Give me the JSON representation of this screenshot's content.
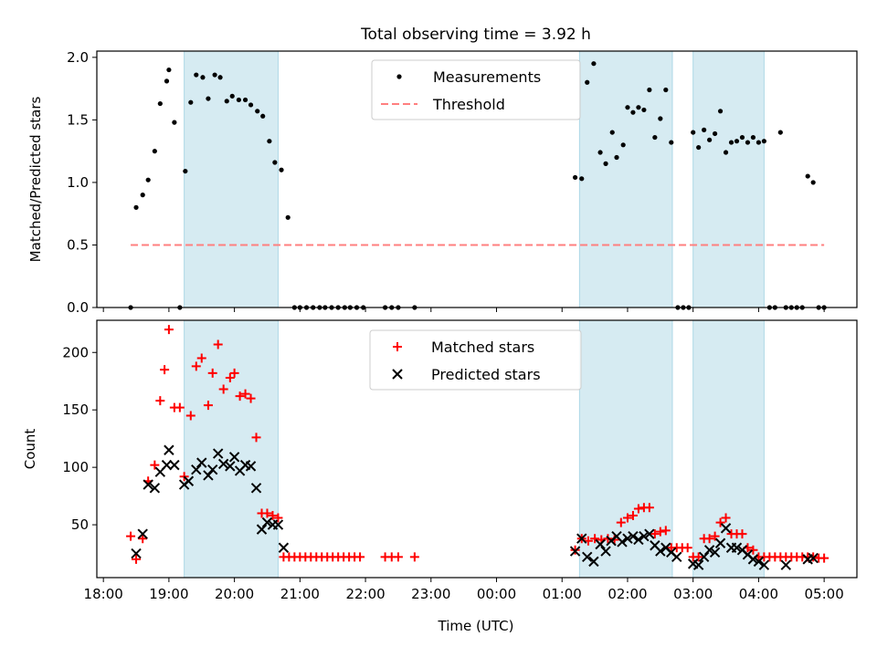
{
  "figure": {
    "title": "Total observing time = 3.92 h",
    "xlabel": "Time (UTC)"
  },
  "chart_data": [
    {
      "type": "scatter",
      "panel": "top",
      "ylabel": "Matched/Predicted stars",
      "ylim": [
        0,
        2.05
      ],
      "yticks": [
        0.0,
        0.5,
        1.0,
        1.5,
        2.0
      ],
      "ytick_labels": [
        "0.0",
        "0.5",
        "1.0",
        "1.5",
        "2.0"
      ],
      "xlim": [
        18.0,
        5.5
      ],
      "legend": {
        "placement": "top-center",
        "entries": [
          {
            "label": "Measurements",
            "marker": "dot",
            "color": "#000000"
          },
          {
            "label": "Threshold",
            "marker": "dashed-line",
            "color": "#ff7f7f"
          }
        ]
      },
      "threshold": {
        "value": 0.5,
        "x_range": [
          "18:25",
          "05:00"
        ],
        "color": "#ff7f7f"
      },
      "shaded_intervals": [
        [
          "19:14",
          "20:40"
        ],
        [
          "01:16",
          "02:41"
        ],
        [
          "03:00",
          "04:05"
        ]
      ],
      "series": [
        {
          "name": "Measurements",
          "color": "#000000",
          "points": [
            [
              "18:25",
              0.0
            ],
            [
              "18:30",
              0.8
            ],
            [
              "18:36",
              0.9
            ],
            [
              "18:41",
              1.02
            ],
            [
              "18:47",
              1.25
            ],
            [
              "18:52",
              1.63
            ],
            [
              "18:58",
              1.81
            ],
            [
              "19:00",
              1.9
            ],
            [
              "19:05",
              1.48
            ],
            [
              "19:10",
              0.0
            ],
            [
              "19:15",
              1.09
            ],
            [
              "19:20",
              1.64
            ],
            [
              "19:25",
              1.86
            ],
            [
              "19:31",
              1.84
            ],
            [
              "19:36",
              1.67
            ],
            [
              "19:42",
              1.86
            ],
            [
              "19:47",
              1.84
            ],
            [
              "19:53",
              1.65
            ],
            [
              "19:58",
              1.69
            ],
            [
              "20:04",
              1.66
            ],
            [
              "20:10",
              1.66
            ],
            [
              "20:15",
              1.62
            ],
            [
              "20:21",
              1.57
            ],
            [
              "20:26",
              1.53
            ],
            [
              "20:32",
              1.33
            ],
            [
              "20:37",
              1.16
            ],
            [
              "20:43",
              1.1
            ],
            [
              "20:49",
              0.72
            ],
            [
              "20:55",
              0.0
            ],
            [
              "21:00",
              0.0
            ],
            [
              "21:06",
              0.0
            ],
            [
              "21:12",
              0.0
            ],
            [
              "21:18",
              0.0
            ],
            [
              "21:23",
              0.0
            ],
            [
              "21:29",
              0.0
            ],
            [
              "21:35",
              0.0
            ],
            [
              "21:41",
              0.0
            ],
            [
              "21:46",
              0.0
            ],
            [
              "21:52",
              0.0
            ],
            [
              "21:58",
              0.0
            ],
            [
              "22:18",
              0.0
            ],
            [
              "22:24",
              0.0
            ],
            [
              "22:30",
              0.0
            ],
            [
              "22:45",
              0.0
            ],
            [
              "01:12",
              1.04
            ],
            [
              "01:18",
              1.03
            ],
            [
              "01:23",
              1.8
            ],
            [
              "01:29",
              1.95
            ],
            [
              "01:35",
              1.24
            ],
            [
              "01:40",
              1.15
            ],
            [
              "01:46",
              1.4
            ],
            [
              "01:50",
              1.2
            ],
            [
              "01:56",
              1.3
            ],
            [
              "02:00",
              1.6
            ],
            [
              "02:05",
              1.56
            ],
            [
              "02:10",
              1.6
            ],
            [
              "02:15",
              1.58
            ],
            [
              "02:20",
              1.74
            ],
            [
              "02:25",
              1.36
            ],
            [
              "02:30",
              1.51
            ],
            [
              "02:35",
              1.74
            ],
            [
              "02:40",
              1.32
            ],
            [
              "02:46",
              0.0
            ],
            [
              "02:51",
              0.0
            ],
            [
              "02:56",
              0.0
            ],
            [
              "03:00",
              1.4
            ],
            [
              "03:05",
              1.28
            ],
            [
              "03:10",
              1.42
            ],
            [
              "03:15",
              1.34
            ],
            [
              "03:20",
              1.39
            ],
            [
              "03:25",
              1.57
            ],
            [
              "03:30",
              1.24
            ],
            [
              "03:35",
              1.32
            ],
            [
              "03:40",
              1.33
            ],
            [
              "03:45",
              1.36
            ],
            [
              "03:50",
              1.32
            ],
            [
              "03:55",
              1.36
            ],
            [
              "04:00",
              1.32
            ],
            [
              "04:05",
              1.33
            ],
            [
              "04:10",
              0.0
            ],
            [
              "04:15",
              0.0
            ],
            [
              "04:20",
              1.4
            ],
            [
              "04:25",
              0.0
            ],
            [
              "04:30",
              0.0
            ],
            [
              "04:35",
              0.0
            ],
            [
              "04:40",
              0.0
            ],
            [
              "04:45",
              1.05
            ],
            [
              "04:50",
              1.0
            ],
            [
              "04:55",
              0.0
            ],
            [
              "05:00",
              0.0
            ]
          ]
        }
      ]
    },
    {
      "type": "scatter",
      "panel": "bottom",
      "ylabel": "Count",
      "ylim": [
        4,
        228
      ],
      "yticks": [
        50,
        100,
        150,
        200
      ],
      "ytick_labels": [
        "50",
        "100",
        "150",
        "200"
      ],
      "xlim": [
        18.0,
        5.5
      ],
      "xticks": [
        "18:00",
        "19:00",
        "20:00",
        "21:00",
        "22:00",
        "23:00",
        "00:00",
        "01:00",
        "02:00",
        "03:00",
        "04:00",
        "05:00"
      ],
      "legend": {
        "placement": "top-center",
        "entries": [
          {
            "label": "Matched stars",
            "marker": "plus",
            "color": "#ff0000"
          },
          {
            "label": "Predicted stars",
            "marker": "x",
            "color": "#000000"
          }
        ]
      },
      "shaded_intervals": [
        [
          "19:14",
          "20:40"
        ],
        [
          "01:16",
          "02:41"
        ],
        [
          "03:00",
          "04:05"
        ]
      ],
      "series": [
        {
          "name": "Matched stars",
          "color": "#ff0000",
          "marker": "plus",
          "points": [
            [
              "18:25",
              40
            ],
            [
              "18:30",
              20
            ],
            [
              "18:36",
              38
            ],
            [
              "18:41",
              88
            ],
            [
              "18:47",
              102
            ],
            [
              "18:52",
              158
            ],
            [
              "18:56",
              185
            ],
            [
              "19:00",
              220
            ],
            [
              "19:05",
              152
            ],
            [
              "19:10",
              152
            ],
            [
              "19:14",
              92
            ],
            [
              "19:20",
              145
            ],
            [
              "19:25",
              188
            ],
            [
              "19:30",
              195
            ],
            [
              "19:36",
              154
            ],
            [
              "19:40",
              182
            ],
            [
              "19:45",
              207
            ],
            [
              "19:50",
              168
            ],
            [
              "19:56",
              178
            ],
            [
              "20:00",
              182
            ],
            [
              "20:05",
              162
            ],
            [
              "20:10",
              164
            ],
            [
              "20:15",
              160
            ],
            [
              "20:20",
              126
            ],
            [
              "20:25",
              60
            ],
            [
              "20:30",
              60
            ],
            [
              "20:35",
              58
            ],
            [
              "20:40",
              56
            ],
            [
              "20:45",
              22
            ],
            [
              "20:50",
              22
            ],
            [
              "20:55",
              22
            ],
            [
              "21:00",
              22
            ],
            [
              "21:05",
              22
            ],
            [
              "21:10",
              22
            ],
            [
              "21:15",
              22
            ],
            [
              "21:20",
              22
            ],
            [
              "21:25",
              22
            ],
            [
              "21:30",
              22
            ],
            [
              "21:35",
              22
            ],
            [
              "21:40",
              22
            ],
            [
              "21:45",
              22
            ],
            [
              "21:50",
              22
            ],
            [
              "21:55",
              22
            ],
            [
              "22:18",
              22
            ],
            [
              "22:24",
              22
            ],
            [
              "22:30",
              22
            ],
            [
              "22:45",
              22
            ],
            [
              "01:12",
              28
            ],
            [
              "01:18",
              38
            ],
            [
              "01:24",
              36
            ],
            [
              "01:30",
              38
            ],
            [
              "01:36",
              37
            ],
            [
              "01:42",
              38
            ],
            [
              "01:48",
              37
            ],
            [
              "01:54",
              52
            ],
            [
              "02:00",
              56
            ],
            [
              "02:05",
              58
            ],
            [
              "02:10",
              64
            ],
            [
              "02:15",
              65
            ],
            [
              "02:20",
              65
            ],
            [
              "02:25",
              42
            ],
            [
              "02:30",
              44
            ],
            [
              "02:35",
              45
            ],
            [
              "02:40",
              30
            ],
            [
              "02:45",
              30
            ],
            [
              "02:50",
              30
            ],
            [
              "02:55",
              30
            ],
            [
              "03:00",
              22
            ],
            [
              "03:05",
              22
            ],
            [
              "03:10",
              38
            ],
            [
              "03:15",
              38
            ],
            [
              "03:20",
              40
            ],
            [
              "03:25",
              52
            ],
            [
              "03:30",
              56
            ],
            [
              "03:35",
              42
            ],
            [
              "03:40",
              42
            ],
            [
              "03:45",
              42
            ],
            [
              "03:50",
              30
            ],
            [
              "03:55",
              28
            ],
            [
              "04:00",
              22
            ],
            [
              "04:05",
              22
            ],
            [
              "04:10",
              22
            ],
            [
              "04:15",
              22
            ],
            [
              "04:20",
              22
            ],
            [
              "04:25",
              22
            ],
            [
              "04:30",
              22
            ],
            [
              "04:35",
              22
            ],
            [
              "04:40",
              22
            ],
            [
              "04:45",
              22
            ],
            [
              "04:50",
              22
            ],
            [
              "04:55",
              21
            ],
            [
              "05:00",
              21
            ]
          ]
        },
        {
          "name": "Predicted stars",
          "color": "#000000",
          "marker": "x",
          "points": [
            [
              "18:30",
              25
            ],
            [
              "18:36",
              42
            ],
            [
              "18:41",
              85
            ],
            [
              "18:47",
              82
            ],
            [
              "18:52",
              96
            ],
            [
              "18:58",
              102
            ],
            [
              "19:00",
              115
            ],
            [
              "19:05",
              102
            ],
            [
              "19:14",
              85
            ],
            [
              "19:18",
              88
            ],
            [
              "19:25",
              98
            ],
            [
              "19:30",
              104
            ],
            [
              "19:36",
              93
            ],
            [
              "19:40",
              98
            ],
            [
              "19:45",
              112
            ],
            [
              "19:50",
              103
            ],
            [
              "19:56",
              101
            ],
            [
              "20:00",
              109
            ],
            [
              "20:05",
              97
            ],
            [
              "20:10",
              102
            ],
            [
              "20:15",
              101
            ],
            [
              "20:20",
              82
            ],
            [
              "20:25",
              46
            ],
            [
              "20:30",
              52
            ],
            [
              "20:35",
              50
            ],
            [
              "20:40",
              50
            ],
            [
              "20:45",
              30
            ],
            [
              "01:12",
              27
            ],
            [
              "01:18",
              38
            ],
            [
              "01:23",
              22
            ],
            [
              "01:29",
              18
            ],
            [
              "01:35",
              33
            ],
            [
              "01:40",
              27
            ],
            [
              "01:45",
              36
            ],
            [
              "01:50",
              40
            ],
            [
              "01:55",
              35
            ],
            [
              "02:00",
              38
            ],
            [
              "02:05",
              40
            ],
            [
              "02:10",
              37
            ],
            [
              "02:15",
              40
            ],
            [
              "02:20",
              42
            ],
            [
              "02:25",
              32
            ],
            [
              "02:30",
              27
            ],
            [
              "02:35",
              30
            ],
            [
              "02:40",
              26
            ],
            [
              "02:45",
              22
            ],
            [
              "03:00",
              16
            ],
            [
              "03:05",
              15
            ],
            [
              "03:10",
              22
            ],
            [
              "03:15",
              28
            ],
            [
              "03:20",
              26
            ],
            [
              "03:25",
              34
            ],
            [
              "03:30",
              47
            ],
            [
              "03:35",
              30
            ],
            [
              "03:40",
              30
            ],
            [
              "03:45",
              28
            ],
            [
              "03:50",
              24
            ],
            [
              "03:55",
              20
            ],
            [
              "04:00",
              18
            ],
            [
              "04:05",
              15
            ],
            [
              "04:25",
              15
            ],
            [
              "04:45",
              20
            ],
            [
              "04:50",
              21
            ]
          ]
        }
      ]
    }
  ]
}
